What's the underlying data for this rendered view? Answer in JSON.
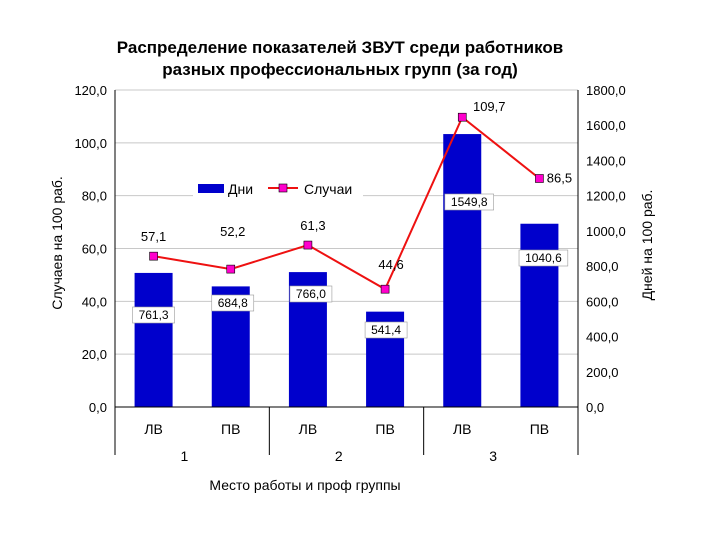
{
  "chart_data": {
    "type": "bar+line",
    "title_line1": "Распределение показателей ЗВУТ среди работников",
    "title_line2": "разных профессиональных групп (за год)",
    "xlabel": "Место работы и проф группы",
    "ylabel_left": "Случаев на 100 раб.",
    "ylabel_right": "Дней на 100 раб.",
    "y_left_ticks": [
      "0,0",
      "20,0",
      "40,0",
      "60,0",
      "80,0",
      "100,0",
      "120,0"
    ],
    "y_right_ticks": [
      "0,0",
      "200,0",
      "400,0",
      "600,0",
      "800,0",
      "1000,0",
      "1200,0",
      "1400,0",
      "1600,0",
      "1800,0"
    ],
    "y_left_range": [
      0,
      120
    ],
    "y_right_range": [
      0,
      1800
    ],
    "categories": [
      "ЛВ",
      "ПВ",
      "ЛВ",
      "ПВ",
      "ЛВ",
      "ПВ"
    ],
    "groups": [
      "1",
      "2",
      "3"
    ],
    "legend_position": "top-center",
    "gridlines": true,
    "series": [
      {
        "name": "Дни",
        "kind": "bar",
        "axis": "right",
        "color": "#0000cc",
        "values": [
          761.3,
          684.8,
          766.0,
          541.4,
          1549.8,
          1040.6
        ],
        "labels": [
          "761,3",
          "684,8",
          "766,0",
          "541,4",
          "1549,8",
          "1040,6"
        ]
      },
      {
        "name": "Случаи",
        "kind": "line",
        "axis": "left",
        "color": "#ee1111",
        "marker_color": "#ff00cc",
        "values": [
          57.1,
          52.2,
          61.3,
          44.6,
          109.7,
          86.5
        ],
        "labels": [
          "57,1",
          "52,2",
          "61,3",
          "44,6",
          "109,7",
          "86,5"
        ]
      }
    ]
  }
}
